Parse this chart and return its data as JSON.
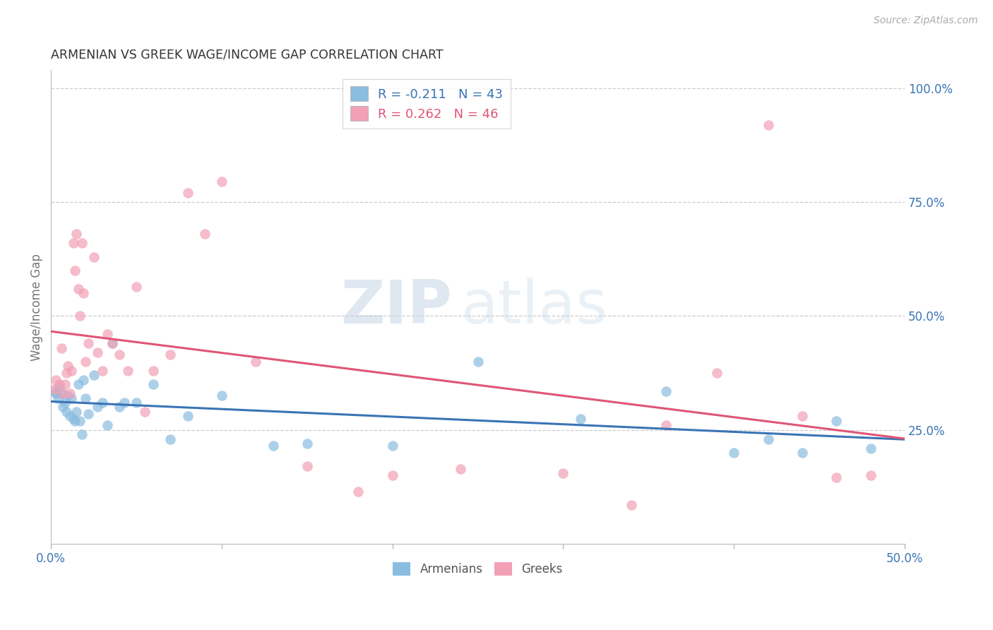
{
  "title": "ARMENIAN VS GREEK WAGE/INCOME GAP CORRELATION CHART",
  "source": "Source: ZipAtlas.com",
  "ylabel": "Wage/Income Gap",
  "ylabel_right_ticks": [
    "100.0%",
    "75.0%",
    "50.0%",
    "25.0%"
  ],
  "ylabel_right_values": [
    1.0,
    0.75,
    0.5,
    0.25
  ],
  "watermark_zip": "ZIP",
  "watermark_atlas": "atlas",
  "legend_armenian_R": "-0.211",
  "legend_armenian_N": "43",
  "legend_greek_R": "0.262",
  "legend_greek_N": "46",
  "armenian_color": "#8BBDE0",
  "greek_color": "#F2A0B5",
  "armenian_line_color": "#3A74B5",
  "greek_line_color": "#E05575",
  "background_color": "#ffffff",
  "xlim": [
    0.0,
    0.5
  ],
  "ylim": [
    0.0,
    1.04
  ],
  "armenian_x": [
    0.002,
    0.003,
    0.004,
    0.005,
    0.006,
    0.007,
    0.008,
    0.009,
    0.01,
    0.011,
    0.012,
    0.013,
    0.014,
    0.015,
    0.016,
    0.017,
    0.018,
    0.019,
    0.02,
    0.022,
    0.025,
    0.027,
    0.03,
    0.033,
    0.036,
    0.04,
    0.043,
    0.05,
    0.06,
    0.07,
    0.08,
    0.1,
    0.13,
    0.15,
    0.2,
    0.25,
    0.31,
    0.36,
    0.4,
    0.42,
    0.44,
    0.46,
    0.48
  ],
  "armenian_y": [
    0.335,
    0.33,
    0.32,
    0.345,
    0.33,
    0.3,
    0.31,
    0.29,
    0.325,
    0.28,
    0.32,
    0.275,
    0.27,
    0.29,
    0.35,
    0.27,
    0.24,
    0.36,
    0.32,
    0.285,
    0.37,
    0.3,
    0.31,
    0.26,
    0.44,
    0.3,
    0.31,
    0.31,
    0.35,
    0.23,
    0.28,
    0.325,
    0.215,
    0.22,
    0.215,
    0.4,
    0.275,
    0.335,
    0.2,
    0.23,
    0.2,
    0.27,
    0.21
  ],
  "greek_x": [
    0.002,
    0.003,
    0.005,
    0.006,
    0.007,
    0.008,
    0.009,
    0.01,
    0.011,
    0.012,
    0.013,
    0.014,
    0.015,
    0.016,
    0.017,
    0.018,
    0.019,
    0.02,
    0.022,
    0.025,
    0.027,
    0.03,
    0.033,
    0.036,
    0.04,
    0.045,
    0.05,
    0.055,
    0.06,
    0.07,
    0.08,
    0.09,
    0.1,
    0.12,
    0.15,
    0.18,
    0.2,
    0.24,
    0.3,
    0.34,
    0.36,
    0.39,
    0.42,
    0.44,
    0.46,
    0.48
  ],
  "greek_y": [
    0.34,
    0.36,
    0.35,
    0.43,
    0.33,
    0.35,
    0.375,
    0.39,
    0.33,
    0.38,
    0.66,
    0.6,
    0.68,
    0.56,
    0.5,
    0.66,
    0.55,
    0.4,
    0.44,
    0.63,
    0.42,
    0.38,
    0.46,
    0.44,
    0.415,
    0.38,
    0.565,
    0.29,
    0.38,
    0.415,
    0.77,
    0.68,
    0.795,
    0.4,
    0.17,
    0.115,
    0.15,
    0.165,
    0.155,
    0.085,
    0.26,
    0.375,
    0.92,
    0.28,
    0.145,
    0.15
  ],
  "marker_size": 110,
  "marker_alpha": 0.7
}
